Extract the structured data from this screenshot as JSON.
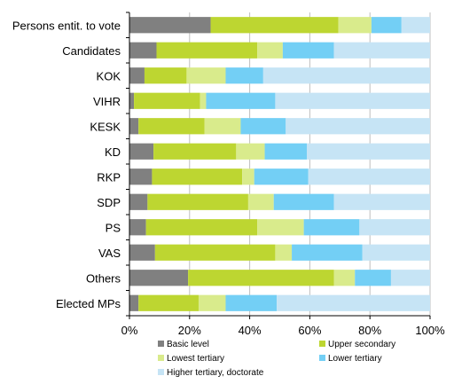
{
  "chart_data": {
    "type": "bar",
    "orientation": "horizontal",
    "stacked": "percent",
    "title": "",
    "xlabel": "",
    "ylabel": "",
    "xlim": [
      0,
      100
    ],
    "x_ticks": [
      "0%",
      "20%",
      "40%",
      "60%",
      "80%",
      "100%"
    ],
    "grid": true,
    "legend_position": "bottom",
    "categories": [
      "Persons entit. to vote",
      "Candidates",
      "KOK",
      "VIHR",
      "KESK",
      "KD",
      "RKP",
      "SDP",
      "PS",
      "VAS",
      "Others",
      "Elected MPs"
    ],
    "series": [
      {
        "name": "Basic level",
        "color": "#808080",
        "values": [
          27,
          9,
          5,
          1.5,
          3,
          8,
          7.5,
          6,
          5.5,
          8.5,
          19.5,
          3
        ]
      },
      {
        "name": "Upper secondary",
        "color": "#bdd631",
        "values": [
          42.5,
          33.5,
          14,
          22,
          22,
          27.5,
          30,
          33.5,
          37,
          40,
          48.5,
          20
        ]
      },
      {
        "name": "Lowest tertiary",
        "color": "#d9eb8c",
        "values": [
          11,
          8.5,
          13,
          2,
          12,
          9.5,
          4,
          8.5,
          15.5,
          5.5,
          7,
          9
        ]
      },
      {
        "name": "Lower tertiary",
        "color": "#73cff5",
        "values": [
          10,
          17,
          12.5,
          23,
          15,
          14,
          18,
          20,
          18.5,
          23.5,
          12,
          17
        ]
      },
      {
        "name": "Higher tertiary, doctorate",
        "color": "#c6e4f5",
        "values": [
          9.5,
          32,
          55.5,
          51.5,
          48,
          41,
          40.5,
          32,
          23.5,
          22.5,
          13,
          51
        ]
      }
    ]
  }
}
